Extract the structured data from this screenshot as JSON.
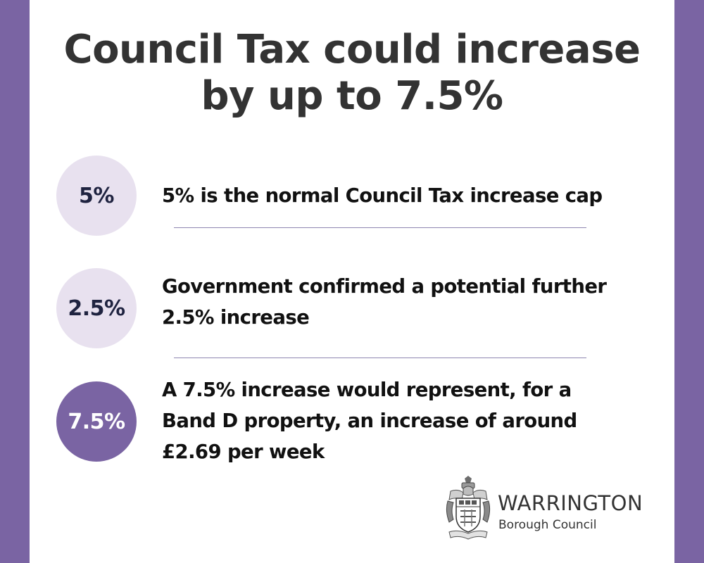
{
  "title": {
    "line1": "Council Tax could increase",
    "line2": "by up to 7.5%"
  },
  "rows": [
    {
      "badge": "5%",
      "lines": [
        "5% is the normal Council Tax increase cap"
      ]
    },
    {
      "badge": "2.5%",
      "lines": [
        "Government confirmed a potential further",
        "2.5% increase"
      ]
    },
    {
      "badge": "7.5%",
      "lines": [
        "A 7.5% increase would represent, for a",
        "Band D property, an increase of around",
        "£2.69 per week"
      ]
    }
  ],
  "logo": {
    "name": "WARRINGTON",
    "subtitle": "Borough Council",
    "icon": "coat-of-arms-icon"
  },
  "colors": {
    "accent": "#7a64a3",
    "light_circle": "#e8e1ef",
    "text": "#333333"
  }
}
